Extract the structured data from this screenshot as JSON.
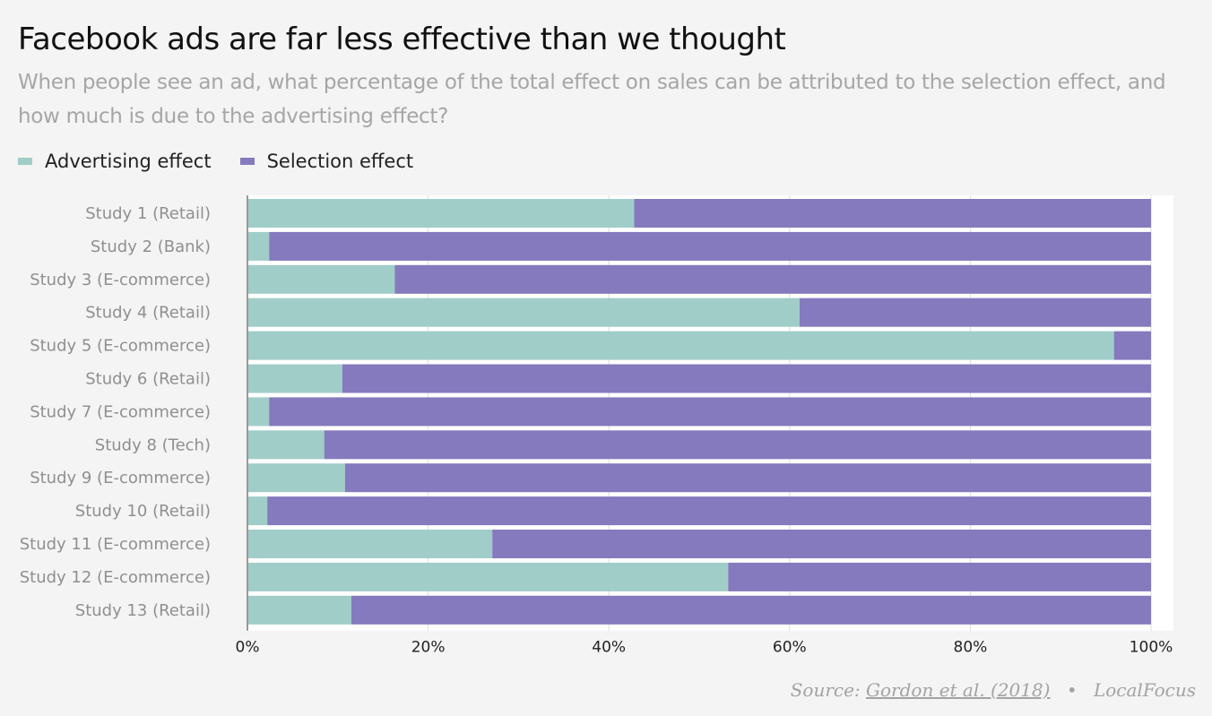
{
  "header": {
    "title": "Facebook ads are far less effective than we thought",
    "subtitle": "When people see an ad, what percentage of the total effect on sales can be attributed to the selection effect, and how much is due to the advertising effect?"
  },
  "footer": {
    "source_label": "Source:",
    "source_link": "Gordon et al. (2018)",
    "separator": "•",
    "credit": "LocalFocus"
  },
  "colors": {
    "advertising": "#a0cdc8",
    "selection": "#857abd"
  },
  "chart_data": {
    "type": "bar",
    "orientation": "horizontal",
    "stacked": true,
    "title": "Facebook ads are far less effective than we thought",
    "xlabel": "",
    "ylabel": "",
    "xlim": [
      0,
      100
    ],
    "x_ticks": [
      "0%",
      "20%",
      "40%",
      "60%",
      "80%",
      "100%"
    ],
    "grid": true,
    "legend_position": "top-left",
    "categories": [
      "Study 1 (Retail)",
      "Study 2 (Bank)",
      "Study 3 (E-commerce)",
      "Study 4 (Retail)",
      "Study 5 (E-commerce)",
      "Study 6 (Retail)",
      "Study 7 (E-commerce)",
      "Study 8 (Tech)",
      "Study 9 (E-commerce)",
      "Study 10 (Retail)",
      "Study 11 (E-commerce)",
      "Study 12 (E-commerce)",
      "Study 13 (Retail)"
    ],
    "series": [
      {
        "name": "Advertising effect",
        "color": "#a0cdc8",
        "values": [
          42.8,
          2.4,
          16.3,
          61.1,
          95.9,
          10.5,
          2.4,
          8.5,
          10.8,
          2.2,
          27.1,
          53.2,
          11.5
        ]
      },
      {
        "name": "Selection effect",
        "color": "#857abd",
        "values": [
          57.2,
          97.6,
          83.7,
          38.9,
          4.1,
          89.5,
          97.6,
          91.5,
          89.2,
          97.8,
          72.9,
          46.8,
          88.5
        ]
      }
    ]
  }
}
